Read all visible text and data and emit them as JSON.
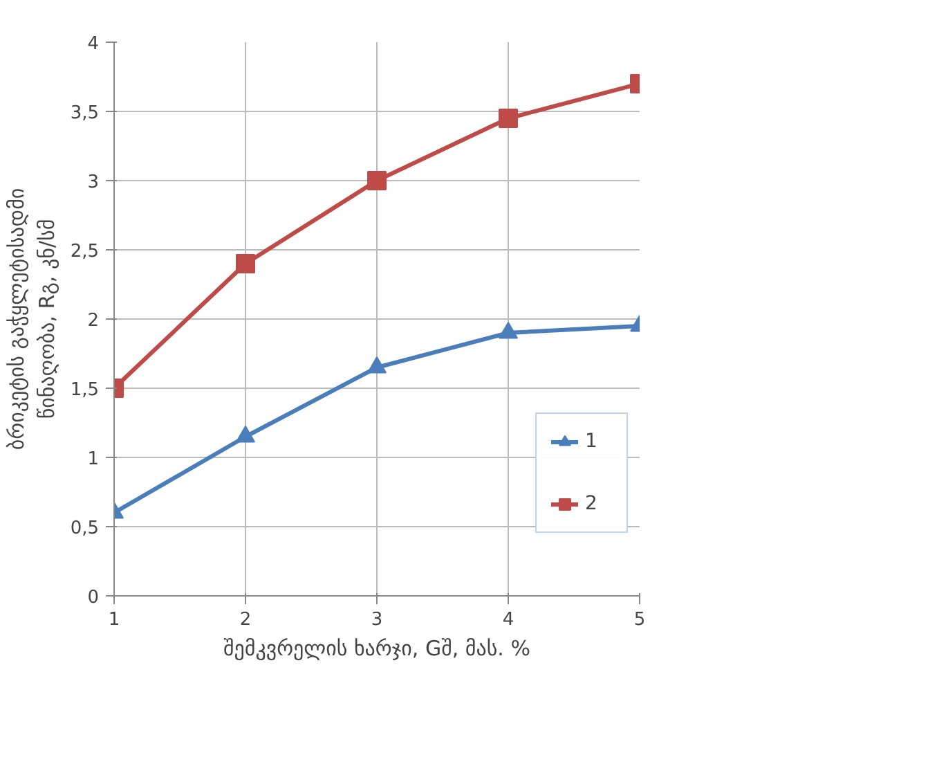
{
  "chart_data": {
    "type": "line",
    "xlabel": "შემკვრელის ხარჯი, Gშ, მას. %",
    "ylabel": "ბრიკეტის გაჭყლეტისადმი\nწინაღობა, Rგ, კნ/სმ",
    "x": [
      1,
      2,
      3,
      4,
      5
    ],
    "series": [
      {
        "name": "1",
        "color": "#4a7ebb",
        "marker": "triangle",
        "values": [
          0.6,
          1.15,
          1.65,
          1.9,
          1.95
        ]
      },
      {
        "name": "2",
        "color": "#be4b48",
        "marker": "square",
        "values": [
          1.5,
          2.4,
          3.0,
          3.45,
          3.7
        ]
      }
    ],
    "xlim": [
      1,
      5
    ],
    "xticks": [
      1,
      2,
      3,
      4,
      5
    ],
    "ylim": [
      0,
      4
    ],
    "yticks": [
      {
        "value": 0,
        "label": "0"
      },
      {
        "value": 0.5,
        "label": "0,5"
      },
      {
        "value": 1,
        "label": "1"
      },
      {
        "value": 1.5,
        "label": "1,5"
      },
      {
        "value": 2,
        "label": "2"
      },
      {
        "value": 2.5,
        "label": "2,5"
      },
      {
        "value": 3,
        "label": "3"
      },
      {
        "value": 3.5,
        "label": "3,5"
      },
      {
        "value": 4,
        "label": "4"
      }
    ],
    "grid": true,
    "legend": "right"
  }
}
